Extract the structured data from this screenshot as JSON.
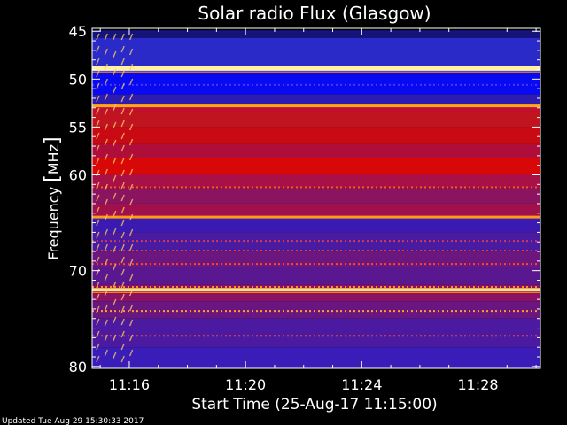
{
  "chart_data": {
    "type": "heatmap",
    "title": "Solar radio Flux (Glasgow)",
    "xlabel": "Start Time (25-Aug-17 11:15:00)",
    "ylabel_left": "Frequency ",
    "ylabel_bracket_open": "[",
    "ylabel_unit": "MHz",
    "ylabel_bracket_close": "]",
    "x_ticks": [
      "11:16",
      "11:20",
      "11:24",
      "11:28"
    ],
    "x_tick_minutes": [
      1,
      5,
      9,
      13
    ],
    "xlim_minutes": [
      -0.28,
      15.15
    ],
    "y_ticks": [
      45,
      50,
      55,
      60,
      70,
      80
    ],
    "ylim": [
      45,
      80
    ],
    "background_bands": [
      {
        "from": 44.9,
        "to": 45.7,
        "color": "#14147a"
      },
      {
        "from": 45.7,
        "to": 48.6,
        "color": "#2a2ac8"
      },
      {
        "from": 48.6,
        "to": 49.2,
        "color": "#4040ff"
      },
      {
        "from": 49.2,
        "to": 51.6,
        "color": "#0a0af0"
      },
      {
        "from": 51.6,
        "to": 52.6,
        "color": "#2c1cb0"
      },
      {
        "from": 52.6,
        "to": 53.4,
        "color": "#c01030"
      },
      {
        "from": 53.4,
        "to": 55.0,
        "color": "#c01420"
      },
      {
        "from": 55.0,
        "to": 56.8,
        "color": "#c80a14"
      },
      {
        "from": 56.8,
        "to": 58.2,
        "color": "#b00e3a"
      },
      {
        "from": 58.2,
        "to": 60.0,
        "color": "#d80808"
      },
      {
        "from": 60.0,
        "to": 61.4,
        "color": "#a81048"
      },
      {
        "from": 61.4,
        "to": 63.0,
        "color": "#8a1460"
      },
      {
        "from": 63.0,
        "to": 64.4,
        "color": "#a0104c"
      },
      {
        "from": 64.4,
        "to": 66.0,
        "color": "#3a1ab0"
      },
      {
        "from": 66.0,
        "to": 68.0,
        "color": "#4a1aa0"
      },
      {
        "from": 68.0,
        "to": 69.6,
        "color": "#6c1680"
      },
      {
        "from": 69.6,
        "to": 71.5,
        "color": "#5a1890"
      },
      {
        "from": 71.5,
        "to": 73.2,
        "color": "#8a1264"
      },
      {
        "from": 73.2,
        "to": 75.0,
        "color": "#6a1680"
      },
      {
        "from": 75.0,
        "to": 78.0,
        "color": "#4c1aa0"
      },
      {
        "from": 78.0,
        "to": 80.2,
        "color": "#3a1cb8"
      }
    ],
    "lines": [
      {
        "freq": 48.9,
        "color": "#fff2a0",
        "width": 5
      },
      {
        "freq": 49.25,
        "color": "#ff8c1a",
        "width": 1
      },
      {
        "freq": 52.8,
        "color": "#ffaa20",
        "width": 3
      },
      {
        "freq": 64.4,
        "color": "#ff9a18",
        "width": 3
      },
      {
        "freq": 72.0,
        "color": "#ffe27a",
        "width": 4
      },
      {
        "freq": 72.3,
        "color": "#ff7a10",
        "width": 1
      }
    ],
    "dashed_lines": [
      {
        "freq": 50.6,
        "color": "#3c3cff"
      },
      {
        "freq": 61.3,
        "color": "#ff5a1a"
      },
      {
        "freq": 66.9,
        "color": "#d23a50"
      },
      {
        "freq": 67.9,
        "color": "#e0402a"
      },
      {
        "freq": 69.3,
        "color": "#ff4a20"
      },
      {
        "freq": 71.7,
        "color": "#ff8a20"
      },
      {
        "freq": 74.2,
        "color": "#ffa020"
      },
      {
        "freq": 76.8,
        "color": "#e04a3a"
      }
    ],
    "burst_start_minute": -0.1,
    "burst_end_minute": 1.05,
    "colors": {
      "burst": "#ffcf60",
      "frame": "#ffffff",
      "text": "#ffffff"
    }
  },
  "footer": {
    "updated": "Updated Tue Aug 29 15:30:33 2017"
  }
}
